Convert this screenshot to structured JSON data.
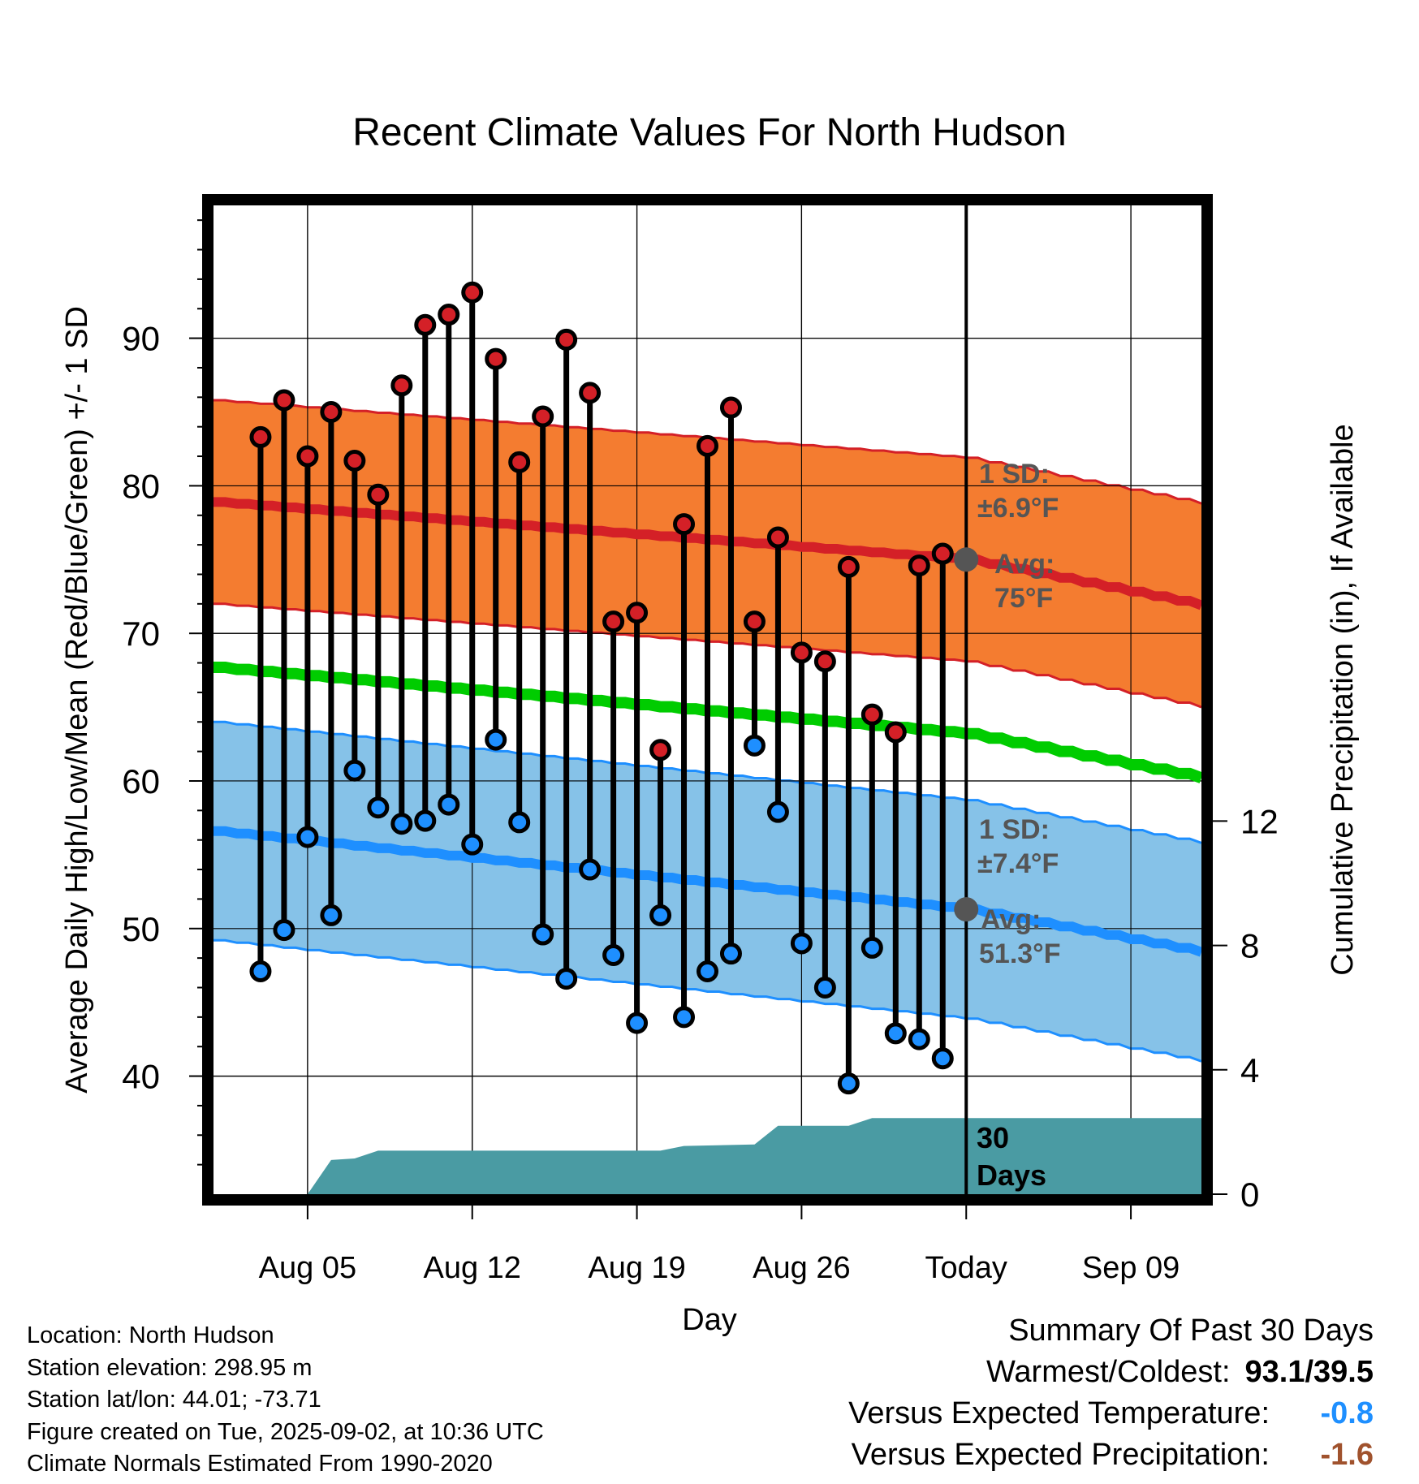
{
  "chart_data": {
    "type": "line",
    "title": "Recent Climate Values For North Hudson",
    "xlabel": "Day",
    "ylabel": "Average Daily High/Low/Mean (Red/Blue/Green) +/- 1 SD",
    "y2label": "Cumulative Precipitation (in), If Available",
    "xlim": [
      "2025-08-01",
      "2025-09-12"
    ],
    "ylim": [
      32,
      99
    ],
    "y2lim": [
      0,
      31.8
    ],
    "x_ticks": [
      {
        "date": "2025-08-05",
        "label": "Aug 05"
      },
      {
        "date": "2025-08-12",
        "label": "Aug 12"
      },
      {
        "date": "2025-08-19",
        "label": "Aug 19"
      },
      {
        "date": "2025-08-26",
        "label": "Aug 26"
      },
      {
        "date": "2025-09-02",
        "label": "Today"
      },
      {
        "date": "2025-09-09",
        "label": "Sep 09"
      }
    ],
    "y_ticks": [
      40,
      50,
      60,
      70,
      80,
      90
    ],
    "y2_ticks": [
      0,
      4,
      8,
      12
    ],
    "grid": true,
    "today": "2025-09-02",
    "days": [
      "2025-08-03",
      "2025-08-04",
      "2025-08-05",
      "2025-08-06",
      "2025-08-07",
      "2025-08-08",
      "2025-08-09",
      "2025-08-10",
      "2025-08-11",
      "2025-08-12",
      "2025-08-13",
      "2025-08-14",
      "2025-08-15",
      "2025-08-16",
      "2025-08-17",
      "2025-08-18",
      "2025-08-19",
      "2025-08-20",
      "2025-08-21",
      "2025-08-22",
      "2025-08-23",
      "2025-08-24",
      "2025-08-25",
      "2025-08-26",
      "2025-08-27",
      "2025-08-28",
      "2025-08-29",
      "2025-08-30",
      "2025-08-31",
      "2025-09-01"
    ],
    "highs": [
      83.3,
      85.8,
      82.0,
      85.0,
      81.7,
      79.4,
      86.8,
      90.9,
      91.6,
      93.1,
      88.6,
      81.6,
      84.7,
      89.9,
      86.3,
      70.8,
      71.4,
      62.1,
      77.4,
      82.7,
      85.3,
      70.8,
      76.5,
      68.7,
      68.1,
      74.5,
      64.5,
      63.3,
      74.6,
      75.4
    ],
    "lows": [
      47.1,
      49.9,
      56.2,
      50.9,
      60.7,
      58.2,
      57.1,
      57.3,
      58.4,
      55.7,
      62.8,
      57.2,
      49.6,
      46.6,
      54.0,
      48.2,
      43.6,
      50.9,
      44.0,
      47.1,
      48.3,
      62.4,
      57.9,
      49.0,
      46.0,
      39.5,
      48.7,
      42.9,
      42.5,
      41.2
    ],
    "normal_high_avg": [
      {
        "date": "2025-08-01",
        "value": 78.9
      },
      {
        "date": "2025-09-02",
        "value": 75.0
      },
      {
        "date": "2025-09-12",
        "value": 71.9
      }
    ],
    "normal_high_sd": 6.9,
    "normal_low_avg": [
      {
        "date": "2025-08-01",
        "value": 56.6
      },
      {
        "date": "2025-09-02",
        "value": 51.3
      },
      {
        "date": "2025-09-12",
        "value": 48.4
      }
    ],
    "normal_low_sd": 7.4,
    "normal_mean": [
      {
        "date": "2025-08-01",
        "value": 67.7
      },
      {
        "date": "2025-09-02",
        "value": 63.2
      },
      {
        "date": "2025-09-12",
        "value": 60.2
      }
    ],
    "precip_cumulative": [
      {
        "date": "2025-08-01",
        "value": 0
      },
      {
        "date": "2025-08-05",
        "value": 0
      },
      {
        "date": "2025-08-06",
        "value": 1.1
      },
      {
        "date": "2025-08-07",
        "value": 1.15
      },
      {
        "date": "2025-08-08",
        "value": 1.4
      },
      {
        "date": "2025-08-20",
        "value": 1.4
      },
      {
        "date": "2025-08-21",
        "value": 1.55
      },
      {
        "date": "2025-08-24",
        "value": 1.6
      },
      {
        "date": "2025-08-25",
        "value": 2.2
      },
      {
        "date": "2025-08-28",
        "value": 2.2
      },
      {
        "date": "2025-08-29",
        "value": 2.45
      },
      {
        "date": "2025-09-12",
        "value": 2.45
      }
    ],
    "annotations": {
      "high_sd_label": "1 SD:",
      "high_sd_value": "±6.9°F",
      "high_avg_label": "Avg:",
      "high_avg_value": "75°F",
      "low_sd_label": "1 SD:",
      "low_sd_value": "±7.4°F",
      "low_avg_label": "Avg:",
      "low_avg_value": "51.3°F",
      "days_number": "30",
      "days_word": "Days"
    },
    "colors": {
      "high_band": "#f47c30",
      "high_line": "#d42027",
      "low_band": "#86c2e8",
      "low_line": "#1e8fff",
      "mean_line": "#00cc00",
      "precip": "#4a9ba3",
      "high_marker": "#d42027",
      "low_marker": "#1e8fff",
      "today_marker": "#555555",
      "annotation_text": "#555555"
    }
  },
  "info": {
    "location": "Location: North Hudson",
    "elevation": "Station elevation: 298.95 m",
    "latlon": "Station lat/lon: 44.01; -73.71",
    "created": "Figure created on Tue, 2025-09-02, at 10:36 UTC",
    "normals": "Climate Normals Estimated From 1990-2020"
  },
  "summary": {
    "title": "Summary Of Past 30 Days",
    "warm_cold_label": "Warmest/Coldest:",
    "warm_cold_value": "93.1/39.5",
    "temp_label": "Versus Expected Temperature:",
    "temp_value": "-0.8",
    "temp_color": "#1e8fff",
    "precip_label": "Versus Expected Precipitation:",
    "precip_value": "-1.6",
    "precip_color": "#a0522d"
  }
}
